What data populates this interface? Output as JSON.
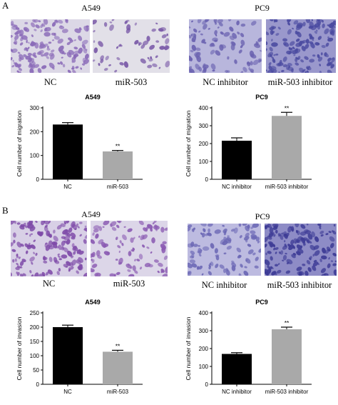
{
  "panels": [
    {
      "letter": "A",
      "left": {
        "cell_line": "A549",
        "images": [
          {
            "label": "NC",
            "stain": "#8a6ab8",
            "background": "#dcd8e6",
            "density": "dense"
          },
          {
            "label": "miR-503",
            "stain": "#7a5aa8",
            "background": "#e2e0e8",
            "density": "sparse"
          }
        ]
      },
      "right": {
        "cell_line": "PC9",
        "images": [
          {
            "label": "NC inhibitor",
            "stain": "#6a62b0",
            "background": "#b8b6dc",
            "density": "medium"
          },
          {
            "label": "miR-503 inhibitor",
            "stain": "#4a4aa0",
            "background": "#9a98cc",
            "density": "dense"
          }
        ]
      }
    },
    {
      "letter": "B",
      "left": {
        "cell_line": "A549",
        "images": [
          {
            "label": "NC",
            "stain": "#7e4aa8",
            "background": "#d8d0e6",
            "density": "dense"
          },
          {
            "label": "miR-503",
            "stain": "#8a5ab2",
            "background": "#dcd6e8",
            "density": "medium"
          }
        ]
      },
      "right": {
        "cell_line": "PC9",
        "images": [
          {
            "label": "NC inhibitor",
            "stain": "#6a66b4",
            "background": "#bdbbe0",
            "density": "medium"
          },
          {
            "label": "miR-503 inhibitor",
            "stain": "#3e3c96",
            "background": "#8e8cc6",
            "density": "dense"
          }
        ]
      }
    }
  ],
  "chart_data": [
    {
      "type": "bar",
      "title": "A549",
      "ylabel": "Cell number of migration",
      "categories": [
        "NC",
        "miR-503"
      ],
      "values": [
        230,
        117
      ],
      "errors": [
        8,
        4
      ],
      "colors": [
        "#000000",
        "#a9a9a9"
      ],
      "significance": [
        "",
        "**"
      ],
      "ylim": [
        0,
        300
      ],
      "yticks": [
        0,
        100,
        200,
        300
      ]
    },
    {
      "type": "bar",
      "title": "PC9",
      "ylabel": "Cell number of migration",
      "categories": [
        "NC inhibitor",
        "miR-503 inhibitor"
      ],
      "values": [
        216,
        355
      ],
      "errors": [
        16,
        20
      ],
      "colors": [
        "#000000",
        "#a9a9a9"
      ],
      "significance": [
        "",
        "**"
      ],
      "ylim": [
        0,
        400
      ],
      "yticks": [
        0,
        100,
        200,
        300,
        400
      ]
    },
    {
      "type": "bar",
      "title": "A549",
      "ylabel": "Cell number of invasion",
      "categories": [
        "NC",
        "miR-503"
      ],
      "values": [
        200,
        114
      ],
      "errors": [
        7,
        5
      ],
      "colors": [
        "#000000",
        "#a9a9a9"
      ],
      "significance": [
        "",
        "**"
      ],
      "ylim": [
        0,
        250
      ],
      "yticks": [
        0,
        50,
        100,
        150,
        200,
        250
      ]
    },
    {
      "type": "bar",
      "title": "PC9",
      "ylabel": "Cell number of invasion",
      "categories": [
        "NC inhibitor",
        "miR-503 inhibitor"
      ],
      "values": [
        170,
        308
      ],
      "errors": [
        7,
        12
      ],
      "colors": [
        "#000000",
        "#a9a9a9"
      ],
      "significance": [
        "",
        "**"
      ],
      "ylim": [
        0,
        400
      ],
      "yticks": [
        0,
        100,
        200,
        300,
        400
      ]
    }
  ]
}
